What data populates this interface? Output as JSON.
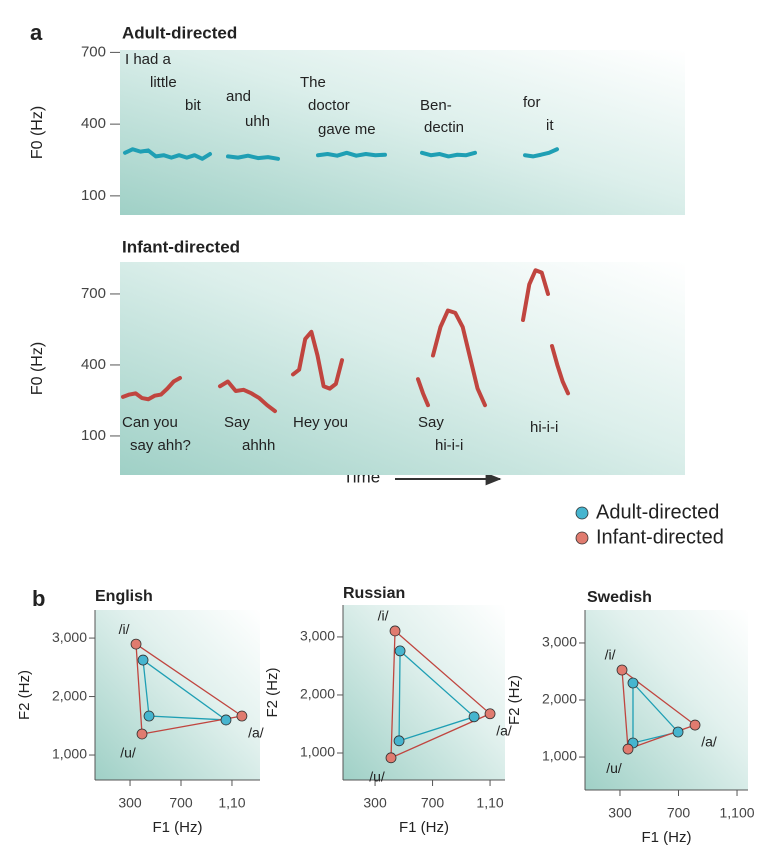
{
  "panel_labels": [
    "a",
    "b"
  ],
  "x_label": "Time",
  "chart_data": [
    {
      "type": "line",
      "title": "Adult-directed",
      "ylabel": "F0 (Hz)",
      "ylim": [
        20,
        710
      ],
      "yticks": [
        100,
        400,
        700
      ],
      "color": "#1f9fb4",
      "series": [
        {
          "values": [
            280,
            295,
            285,
            290,
            265,
            270,
            260,
            270,
            260,
            270,
            255,
            275
          ]
        },
        {
          "values": [
            265,
            260,
            268,
            258,
            262,
            255
          ]
        },
        {
          "values": [
            270,
            275,
            268,
            280,
            268,
            275,
            270,
            272
          ]
        },
        {
          "values": [
            280,
            270,
            275,
            265,
            272,
            270,
            280
          ]
        },
        {
          "values": [
            270,
            265,
            272,
            280,
            295
          ]
        }
      ],
      "annotations": [
        "I had a",
        "little",
        "bit",
        "and",
        "uhh",
        "The",
        "doctor",
        "gave me",
        "Ben-",
        "dectin",
        "for",
        "it"
      ]
    },
    {
      "type": "line",
      "title": "Infant-directed",
      "ylabel": "F0 (Hz)",
      "ylim": [
        -65,
        835
      ],
      "yticks": [
        100,
        400,
        700
      ],
      "color": "#c0453f",
      "series": [
        {
          "values": [
            265,
            275,
            280,
            260,
            255,
            270,
            275,
            300,
            330,
            345
          ]
        },
        {
          "values": [
            310,
            330,
            290,
            295,
            280,
            260,
            230,
            205
          ]
        },
        {
          "values": [
            360,
            380,
            510,
            540,
            440,
            310,
            300,
            320,
            420
          ]
        },
        {
          "values": [
            340,
            280,
            230
          ]
        },
        {
          "values": [
            440,
            560,
            630,
            620,
            560,
            430,
            300,
            230
          ]
        },
        {
          "values": [
            590,
            740,
            800,
            790,
            700
          ]
        },
        {
          "values": [
            480,
            400,
            330,
            280
          ]
        }
      ],
      "annotations": [
        "Can you",
        "say ahh?",
        "Say",
        "ahhh",
        "Hey you",
        "Say",
        "hi-i-i",
        "hi-i-i"
      ]
    },
    {
      "type": "scatter",
      "title": "English",
      "xlabel": "F1 (Hz)",
      "ylabel": "F2 (Hz)",
      "categories": [
        "/i/",
        "/a/",
        "/u/"
      ],
      "xlim": [
        25,
        1320
      ],
      "xticks": [
        300,
        700,
        {
          "value": 1100,
          "label": "1,10"
        }
      ],
      "ylim": [
        573,
        3480
      ],
      "yticks": [
        {
          "value": 1000,
          "label": "1,000"
        },
        {
          "value": 2000,
          "label": "2,000"
        },
        {
          "value": 3000,
          "label": "3,000"
        }
      ],
      "series": [
        {
          "name": "Adult-directed",
          "color": "#46b5cf",
          "x": [
            402,
            1053,
            449
          ],
          "y": [
            2624,
            1600,
            1667
          ]
        },
        {
          "name": "Infant-directed",
          "color": "#e07b6f",
          "x": [
            347,
            1178,
            394
          ],
          "y": [
            2897,
            1667,
            1360
          ]
        }
      ]
    },
    {
      "type": "scatter",
      "title": "Russian",
      "xlabel": "F1 (Hz)",
      "ylabel": "F2 (Hz)",
      "categories": [
        "/i/",
        "/a/",
        "/u/"
      ],
      "xlim": [
        77,
        1204
      ],
      "xticks": [
        300,
        700,
        {
          "value": 1100,
          "label": "1,10"
        }
      ],
      "ylim": [
        535,
        3550
      ],
      "yticks": [
        {
          "value": 1000,
          "label": "1,000"
        },
        {
          "value": 2000,
          "label": "2,000"
        },
        {
          "value": 3000,
          "label": "3,000"
        }
      ],
      "series": [
        {
          "name": "Adult-directed",
          "color": "#46b5cf",
          "x": [
            474,
            989,
            467
          ],
          "y": [
            2759,
            1624,
            1210
          ]
        },
        {
          "name": "Infant-directed",
          "color": "#e07b6f",
          "x": [
            439,
            1100,
            411
          ],
          "y": [
            3103,
            1676,
            917
          ]
        }
      ]
    },
    {
      "type": "scatter",
      "title": "Swedish",
      "xlabel": "F1 (Hz)",
      "ylabel": "F2 (Hz)",
      "categories": [
        "/i/",
        "/a/",
        "/u/"
      ],
      "xlim": [
        61,
        1175
      ],
      "xticks": [
        300,
        700,
        {
          "value": 1100,
          "label": "1,100"
        }
      ],
      "ylim": [
        422,
        3578
      ],
      "yticks": [
        {
          "value": 1000,
          "label": "1,000"
        },
        {
          "value": 2000,
          "label": "2,000"
        },
        {
          "value": 3000,
          "label": "3,000"
        }
      ],
      "series": [
        {
          "name": "Adult-directed",
          "color": "#46b5cf",
          "x": [
            389,
            697,
            389
          ],
          "y": [
            2298,
            1439,
            1246
          ]
        },
        {
          "name": "Infant-directed",
          "color": "#e07b6f",
          "x": [
            314,
            813,
            355
          ],
          "y": [
            2526,
            1561,
            1140
          ]
        }
      ]
    }
  ]
}
